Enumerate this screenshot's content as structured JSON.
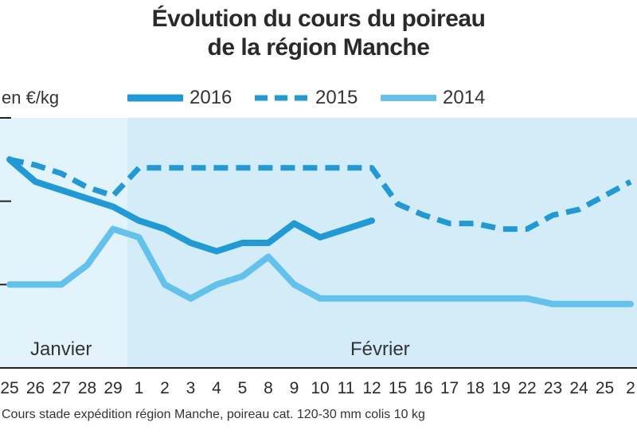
{
  "chart_data": {
    "type": "line",
    "title": [
      "Évolution du cours du poireau",
      "de la région Manche"
    ],
    "ylabel": "en €/kg",
    "source": "Cours stade expédition région Manche, poireau cat. 120-30 mm colis 10 kg",
    "months": [
      {
        "label": "Janvier"
      },
      {
        "label": "Février"
      }
    ],
    "x_labels": [
      "25",
      "26",
      "27",
      "28",
      "29",
      "1",
      "2",
      "3",
      "4",
      "5",
      "8",
      "9",
      "10",
      "11",
      "12",
      "15",
      "16",
      "17",
      "18",
      "19",
      "22",
      "23",
      "24",
      "25",
      "2"
    ],
    "grid": true,
    "legend_position": "top",
    "series": [
      {
        "name": "2016",
        "style": "solid-thick",
        "color": "#1f9ad6",
        "values": [
          1.95,
          1.87,
          1.84,
          1.81,
          1.78,
          1.73,
          1.7,
          1.65,
          1.62,
          1.65,
          1.65,
          1.72,
          1.67,
          1.7,
          1.73
        ]
      },
      {
        "name": "2015",
        "style": "dashed",
        "color": "#1f9ad6",
        "values": [
          1.95,
          1.93,
          1.9,
          1.85,
          1.82,
          1.92,
          1.92,
          1.92,
          1.92,
          1.92,
          1.92,
          1.92,
          1.92,
          1.92,
          1.92,
          1.79,
          1.75,
          1.72,
          1.72,
          1.7,
          1.7,
          1.75,
          1.77,
          1.82,
          1.87
        ]
      },
      {
        "name": "2014",
        "style": "solid-light",
        "color": "#62c2ee",
        "values": [
          1.5,
          1.5,
          1.5,
          1.57,
          1.7,
          1.67,
          1.5,
          1.45,
          1.5,
          1.53,
          1.6,
          1.5,
          1.45,
          1.45,
          1.45,
          1.45,
          1.45,
          1.45,
          1.45,
          1.45,
          1.45,
          1.43,
          1.43,
          1.43,
          1.43
        ]
      }
    ],
    "y_range": [
      1.2,
      2.1
    ],
    "colors": {
      "band_left": "#e3f3fb",
      "band_right": "#d4ecf8",
      "grid": "#222222"
    }
  }
}
